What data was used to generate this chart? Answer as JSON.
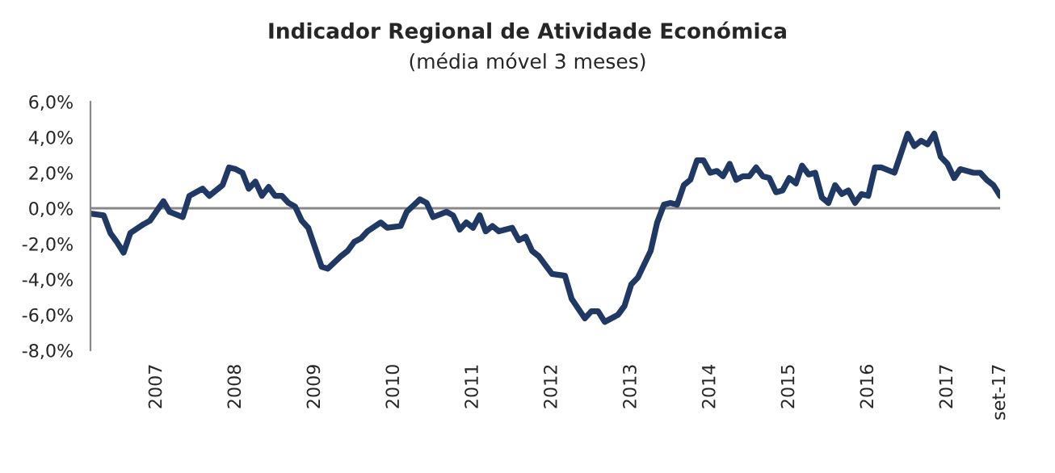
{
  "chart_data": {
    "type": "line",
    "title": "Indicador Regional de Atividade Económica",
    "subtitle": "(média móvel 3 meses)",
    "x": [
      "2006-03",
      "2006-05",
      "2006-06",
      "2006-07",
      "2006-08",
      "2006-09",
      "2006-11",
      "2006-12",
      "2007-02",
      "2007-03",
      "2007-05",
      "2007-06",
      "2007-08",
      "2007-09",
      "2007-11",
      "2007-12",
      "2008-01",
      "2008-02",
      "2008-03",
      "2008-04",
      "2008-05",
      "2008-06",
      "2008-07",
      "2008-08",
      "2008-09",
      "2008-10",
      "2008-11",
      "2008-12",
      "2009-01",
      "2009-02",
      "2009-03",
      "2009-05",
      "2009-06",
      "2009-07",
      "2009-08",
      "2009-09",
      "2009-11",
      "2009-12",
      "2010-02",
      "2010-03",
      "2010-05",
      "2010-06",
      "2010-07",
      "2010-09",
      "2010-10",
      "2010-11",
      "2010-12",
      "2011-01",
      "2011-02",
      "2011-03",
      "2011-04",
      "2011-05",
      "2011-07",
      "2011-08",
      "2011-09",
      "2011-10",
      "2011-11",
      "2012-01",
      "2012-03",
      "2012-04",
      "2012-06",
      "2012-07",
      "2012-08",
      "2012-09",
      "2012-11",
      "2012-12",
      "2013-01",
      "2013-02",
      "2013-04",
      "2013-05",
      "2013-06",
      "2013-07",
      "2013-08",
      "2013-09",
      "2013-10",
      "2013-11",
      "2013-12",
      "2014-01",
      "2014-02",
      "2014-03",
      "2014-04",
      "2014-05",
      "2014-06",
      "2014-07",
      "2014-08",
      "2014-09",
      "2014-10",
      "2014-11",
      "2014-12",
      "2015-01",
      "2015-02",
      "2015-03",
      "2015-04",
      "2015-05",
      "2015-06",
      "2015-07",
      "2015-08",
      "2015-09",
      "2015-10",
      "2015-11",
      "2015-12",
      "2016-01",
      "2016-02",
      "2016-03",
      "2016-05",
      "2016-07",
      "2016-08",
      "2016-09",
      "2016-10",
      "2016-11",
      "2016-12",
      "2017-01",
      "2017-02",
      "2017-03",
      "2017-05",
      "2017-06",
      "2017-07",
      "2017-08",
      "2017-09"
    ],
    "series": [
      {
        "color": "#1f3864",
        "values": [
          -0.3,
          -0.4,
          -1.4,
          -1.9,
          -2.5,
          -1.4,
          -0.9,
          -0.7,
          0.4,
          -0.2,
          -0.5,
          0.7,
          1.1,
          0.7,
          1.3,
          2.3,
          2.2,
          2.0,
          1.1,
          1.5,
          0.7,
          1.2,
          0.7,
          0.7,
          0.3,
          0.1,
          -0.7,
          -1.1,
          -2.2,
          -3.3,
          -3.4,
          -2.7,
          -2.4,
          -1.9,
          -1.7,
          -1.3,
          -0.8,
          -1.1,
          -1.0,
          -0.2,
          0.5,
          0.3,
          -0.5,
          -0.2,
          -0.4,
          -1.2,
          -0.8,
          -1.1,
          -0.4,
          -1.3,
          -1.0,
          -1.3,
          -1.1,
          -1.8,
          -1.6,
          -2.4,
          -2.7,
          -3.7,
          -3.8,
          -5.1,
          -6.2,
          -5.8,
          -5.8,
          -6.4,
          -6.0,
          -5.5,
          -4.3,
          -3.9,
          -2.4,
          -0.8,
          0.2,
          0.3,
          0.2,
          1.3,
          1.6,
          2.7,
          2.7,
          2.0,
          2.1,
          1.8,
          2.5,
          1.6,
          1.8,
          1.8,
          2.3,
          1.8,
          1.7,
          0.9,
          1.0,
          1.7,
          1.4,
          2.4,
          1.9,
          2.0,
          0.6,
          0.3,
          1.3,
          0.8,
          1.0,
          0.3,
          0.8,
          0.7,
          2.3,
          2.3,
          2.0,
          4.2,
          3.5,
          3.8,
          3.6,
          4.2,
          2.9,
          2.5,
          1.7,
          2.2,
          2.0,
          2.0,
          1.6,
          1.3,
          0.7
        ]
      }
    ],
    "xlim": [
      "2006-03",
      "2017-09"
    ],
    "xticks": [
      {
        "value": "2007-01",
        "label": "2007"
      },
      {
        "value": "2008-01",
        "label": "2008"
      },
      {
        "value": "2009-01",
        "label": "2009"
      },
      {
        "value": "2010-01",
        "label": "2010"
      },
      {
        "value": "2011-01",
        "label": "2011"
      },
      {
        "value": "2012-01",
        "label": "2012"
      },
      {
        "value": "2013-01",
        "label": "2013"
      },
      {
        "value": "2014-01",
        "label": "2014"
      },
      {
        "value": "2015-01",
        "label": "2015"
      },
      {
        "value": "2016-01",
        "label": "2016"
      },
      {
        "value": "2017-01",
        "label": "2017"
      },
      {
        "value": "2017-09",
        "label": "set-17"
      }
    ],
    "ylim": [
      -8,
      6
    ],
    "yticks": [
      {
        "value": -8,
        "label": "-8,0%"
      },
      {
        "value": -6,
        "label": "-6,0%"
      },
      {
        "value": -4,
        "label": "-4,0%"
      },
      {
        "value": -2,
        "label": "-2,0%"
      },
      {
        "value": 0,
        "label": "0,0%"
      },
      {
        "value": 2,
        "label": "2,0%"
      },
      {
        "value": 4,
        "label": "4,0%"
      },
      {
        "value": 6,
        "label": "6,0%"
      }
    ],
    "ref_lines": [
      {
        "axis": "y",
        "value": 0,
        "color": "#888888"
      }
    ],
    "grid": false,
    "legend": false,
    "marker": "none",
    "line_style": "solid"
  }
}
